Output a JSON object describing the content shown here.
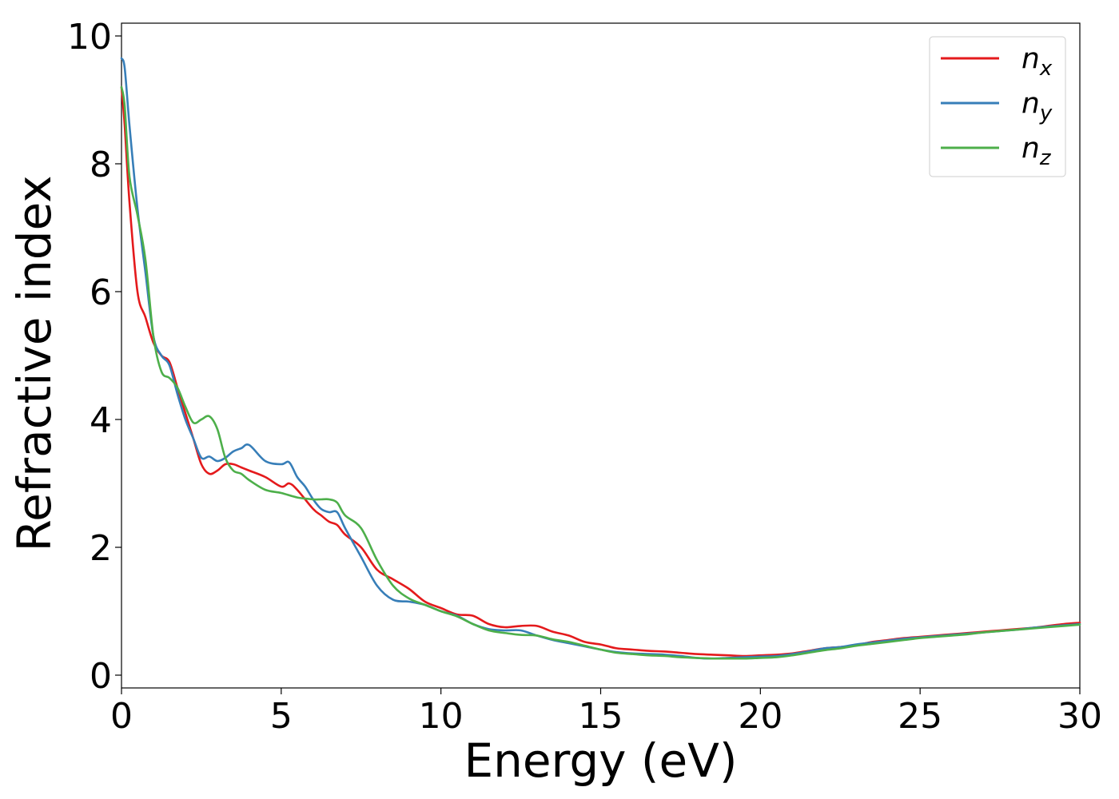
{
  "chart_data": {
    "type": "line",
    "title": "",
    "xlabel": "Energy (eV)",
    "ylabel": "Refractive index",
    "xlim": [
      0,
      30
    ],
    "ylim": [
      -0.2,
      10.2
    ],
    "xticks": [
      0,
      5,
      10,
      15,
      20,
      25,
      30
    ],
    "yticks": [
      0,
      2,
      4,
      6,
      8,
      10
    ],
    "xtick_labels": [
      "0",
      "5",
      "10",
      "15",
      "20",
      "25",
      "30"
    ],
    "ytick_labels": [
      "0",
      "2",
      "4",
      "6",
      "8",
      "10"
    ],
    "grid": false,
    "legend_position": "top-right",
    "series": [
      {
        "name": "n",
        "subscript": "x",
        "color": "#e41a1c",
        "x": [
          0,
          0.1,
          0.25,
          0.5,
          0.75,
          1.0,
          1.25,
          1.5,
          1.75,
          2.0,
          2.25,
          2.5,
          2.75,
          3.0,
          3.25,
          3.5,
          3.75,
          4.0,
          4.5,
          5.0,
          5.25,
          5.5,
          6.0,
          6.25,
          6.5,
          6.75,
          7.0,
          7.5,
          8.0,
          8.5,
          9.0,
          9.5,
          10.0,
          10.5,
          11.0,
          11.5,
          12.0,
          12.5,
          13.0,
          13.5,
          14.0,
          14.5,
          15.0,
          15.5,
          16.0,
          16.5,
          17.0,
          17.5,
          18.0,
          18.5,
          19.0,
          19.5,
          20.0,
          20.5,
          21.0,
          21.5,
          22.0,
          22.5,
          23.0,
          23.5,
          24.0,
          24.5,
          25.0,
          25.5,
          26.0,
          26.5,
          27.0,
          27.5,
          28.0,
          28.5,
          29.0,
          29.5,
          30.0
        ],
        "y": [
          9.2,
          8.6,
          7.4,
          6.0,
          5.6,
          5.2,
          5.0,
          4.9,
          4.5,
          4.1,
          3.7,
          3.3,
          3.15,
          3.2,
          3.3,
          3.3,
          3.25,
          3.2,
          3.1,
          2.95,
          3.0,
          2.9,
          2.6,
          2.5,
          2.4,
          2.35,
          2.2,
          2.0,
          1.65,
          1.5,
          1.35,
          1.15,
          1.05,
          0.95,
          0.93,
          0.8,
          0.75,
          0.77,
          0.77,
          0.68,
          0.62,
          0.52,
          0.48,
          0.42,
          0.4,
          0.38,
          0.37,
          0.35,
          0.33,
          0.32,
          0.31,
          0.3,
          0.31,
          0.32,
          0.34,
          0.38,
          0.42,
          0.44,
          0.47,
          0.52,
          0.55,
          0.58,
          0.6,
          0.62,
          0.64,
          0.66,
          0.68,
          0.7,
          0.72,
          0.74,
          0.77,
          0.8,
          0.82
        ]
      },
      {
        "name": "n",
        "subscript": "y",
        "color": "#377eb8",
        "x": [
          0,
          0.1,
          0.25,
          0.5,
          0.75,
          1.0,
          1.25,
          1.5,
          1.75,
          2.0,
          2.25,
          2.5,
          2.75,
          3.0,
          3.25,
          3.5,
          3.75,
          4.0,
          4.5,
          5.0,
          5.25,
          5.5,
          5.75,
          6.0,
          6.25,
          6.5,
          6.75,
          7.0,
          7.5,
          8.0,
          8.5,
          9.0,
          9.5,
          10.0,
          10.5,
          11.0,
          11.5,
          12.0,
          12.5,
          13.0,
          13.5,
          14.0,
          14.5,
          15.0,
          15.5,
          16.0,
          16.5,
          17.0,
          17.5,
          18.0,
          18.5,
          19.0,
          19.5,
          20.0,
          20.5,
          21.0,
          21.5,
          22.0,
          22.5,
          23.0,
          23.5,
          24.0,
          24.5,
          25.0,
          25.5,
          26.0,
          26.5,
          27.0,
          27.5,
          28.0,
          28.5,
          29.0,
          29.5,
          30.0
        ],
        "y": [
          9.65,
          9.5,
          8.6,
          7.3,
          6.3,
          5.3,
          5.0,
          4.85,
          4.4,
          4.0,
          3.7,
          3.4,
          3.42,
          3.35,
          3.4,
          3.5,
          3.55,
          3.6,
          3.35,
          3.3,
          3.33,
          3.1,
          2.95,
          2.75,
          2.6,
          2.55,
          2.55,
          2.3,
          1.85,
          1.4,
          1.18,
          1.15,
          1.1,
          1.0,
          0.93,
          0.8,
          0.72,
          0.7,
          0.7,
          0.62,
          0.55,
          0.5,
          0.45,
          0.4,
          0.36,
          0.34,
          0.33,
          0.32,
          0.3,
          0.27,
          0.26,
          0.27,
          0.28,
          0.29,
          0.3,
          0.33,
          0.37,
          0.42,
          0.44,
          0.48,
          0.51,
          0.54,
          0.57,
          0.59,
          0.61,
          0.63,
          0.65,
          0.67,
          0.69,
          0.71,
          0.74,
          0.76,
          0.78,
          0.8
        ]
      },
      {
        "name": "n",
        "subscript": "z",
        "color": "#4daf4a",
        "x": [
          0,
          0.1,
          0.25,
          0.5,
          0.75,
          1.0,
          1.25,
          1.5,
          1.75,
          2.0,
          2.25,
          2.5,
          2.75,
          3.0,
          3.25,
          3.5,
          3.75,
          4.0,
          4.5,
          5.0,
          5.5,
          6.0,
          6.25,
          6.5,
          6.75,
          7.0,
          7.5,
          8.0,
          8.5,
          9.0,
          9.5,
          10.0,
          10.5,
          11.0,
          11.5,
          12.0,
          12.5,
          13.0,
          13.5,
          14.0,
          14.5,
          15.0,
          15.5,
          16.0,
          16.5,
          17.0,
          17.5,
          18.0,
          18.5,
          19.0,
          19.5,
          20.0,
          20.5,
          21.0,
          21.5,
          22.0,
          22.5,
          23.0,
          23.5,
          24.0,
          24.5,
          25.0,
          25.5,
          26.0,
          26.5,
          27.0,
          27.5,
          28.0,
          28.5,
          29.0,
          29.5,
          30.0
        ],
        "y": [
          9.2,
          8.9,
          7.8,
          7.2,
          6.5,
          5.3,
          4.75,
          4.65,
          4.5,
          4.2,
          3.95,
          4.0,
          4.05,
          3.85,
          3.4,
          3.2,
          3.15,
          3.05,
          2.9,
          2.85,
          2.78,
          2.75,
          2.75,
          2.75,
          2.7,
          2.5,
          2.3,
          1.8,
          1.4,
          1.2,
          1.1,
          1.0,
          0.92,
          0.8,
          0.7,
          0.66,
          0.63,
          0.62,
          0.56,
          0.52,
          0.46,
          0.4,
          0.35,
          0.33,
          0.31,
          0.3,
          0.28,
          0.27,
          0.26,
          0.26,
          0.26,
          0.27,
          0.28,
          0.31,
          0.35,
          0.39,
          0.42,
          0.46,
          0.49,
          0.52,
          0.55,
          0.58,
          0.6,
          0.62,
          0.64,
          0.67,
          0.69,
          0.71,
          0.73,
          0.75,
          0.77,
          0.79
        ]
      }
    ]
  }
}
